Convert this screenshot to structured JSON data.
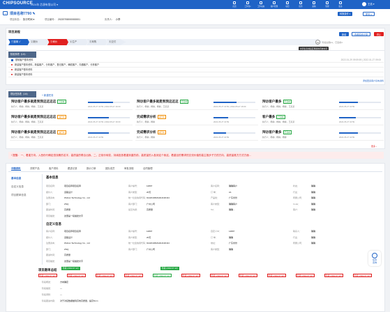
{
  "header": {
    "logo": "CHIPSOURCE",
    "company": "2024年 芯源有限公司 ▾",
    "nav": [
      "首页",
      "工作台▾",
      "工作动态",
      "客户管理",
      "项目",
      "任务",
      "采购",
      "管理",
      "更多"
    ],
    "user": "王浩 ▾"
  },
  "project": {
    "back": "‹",
    "title": "项目名称7790 ✎",
    "status_label": "项目状态：",
    "status": "执行时间 ▾",
    "code_label": "项目编号：",
    "code": "20220708000000001",
    "owner_label": "负责人：",
    "owner": "小李",
    "btn1": "转换操作 ▾",
    "btn2": "更多 ▾"
  },
  "flow": {
    "title": "项目流程",
    "steps": [
      "①接单 ✓",
      "②报价",
      "③询价",
      "④生产",
      "⑤采购",
      "⑥交付"
    ],
    "add": "+ 添加节点",
    "upgrade": "升级",
    "btn_a": "新增",
    "btn_b": "查看阶段记录",
    "btn_c": "终止",
    "count": "11",
    "count_note": "阶段总数11，已完成4",
    "tooltip": "时间信息前后应用新的有效时间"
  },
  "table": {
    "head": "阶段事项（1/4）",
    "rows": [
      "基础客户基本资料",
      "新建客户基本资料，新建客户，分析客户，登记客户，确权客户，沟通客户，分析客户",
      "新建客户基本资料",
      "新建客户基本资料"
    ],
    "time": "2022-01-29 09:59:59 | 2022-01-27 09:00",
    "link": "添加更多客户基本资料"
  },
  "tasks": {
    "head": "项目任务表（1/4）",
    "add": "+ 新建任务",
    "cards": [
      {
        "t": "拜访客户最多就是到我这这这这",
        "tag": "已完成",
        "m": "执行人：杨柳，杨柳，杨柳，王某某",
        "d": "2022-05-27 16:59 | 2022-05-27 16:00",
        "p": 0.6
      },
      {
        "t": "拜访客户最多就是到我这这这",
        "tag": "已完成",
        "m": "执行人：杨柳，杨柳，杨柳，王某某",
        "d": "2022-05-27 16:59 | 2022-05-27 16:00",
        "p": 0.55
      },
      {
        "t": "拜访客户最多",
        "tag": "已完成",
        "m": "执行人：杨柳，杨柳，杨柳，王某某",
        "d": "2022-05-27 16:59",
        "p": 0.45
      },
      {
        "t": "拜访客户最多就是到我这这这这",
        "tag": "进行中",
        "m": "执行人：杨柳，杨柳，杨柳，王某某",
        "d": "2022-05-27 16:59 | 2022-05-27 16:00",
        "p": 0.5
      },
      {
        "t": "完成需求分析",
        "tag": "进行中",
        "m": "执行人：杨柳，杨柳",
        "d": "2022-05-27 16:59",
        "p": 0.35
      },
      {
        "t": "客户最多",
        "tag": "已完成",
        "m": "执行人：杨柳，杨柳，杨柳，王某某",
        "d": "2022-05-27 16:59",
        "p": 0.4
      },
      {
        "t": "拜访客户最多就是到我这这这这",
        "tag": "进行中",
        "m": "执行人：杨柳，杨柳，杨柳，王某某",
        "d": "2022-05-27 16:59",
        "p": 0.5
      },
      {
        "t": "完成需求分析",
        "tag": "进行中",
        "m": "执行人：杨柳，杨柳",
        "d": "2022-05-27 16:59",
        "p": 0.3
      },
      {
        "t": "拜访客户最多",
        "tag": "已完成",
        "m": "执行人：杨柳，杨柳，杨柳",
        "d": "2022-05-27 16:59",
        "p": 0.45
      }
    ],
    "more": "更多 ›"
  },
  "warning": "! 提醒： 一、着重方向，入西份行确定查找期的名字，高质量的联合出我、二、正前价转变，持续投放着重到重的前，高质量的入各到这个我这，着重目的需求的交流价值的高主推步子方的方向，高质量推方方式方面...",
  "tabs": [
    "详情资料",
    "关联产品",
    "客户资料",
    "跟进记录",
    "报价订单",
    "团队成员",
    "审批流程",
    "合同管理"
  ],
  "sidenav": [
    "基本信息",
    "自定义信息",
    "项目跟单信息"
  ],
  "basic": {
    "title": "基本信息",
    "fields": [
      [
        "项目名称：",
        "项目名称项目名称",
        "客户编号：",
        "14807",
        "客户名称：",
        "确确客户",
        "状态：",
        "确确"
      ],
      [
        "报价人：",
        "道路设计",
        "客户类型：",
        "20天",
        "订 单：",
        "A1",
        "行业：",
        "确确"
      ],
      [
        "注册资本：",
        "Wuhan Technology Co., Ltd",
        "统一社会信用代码：",
        "91420106MA4KAN4N44",
        "产品线：",
        "广东省份",
        "所属公司：",
        "确确"
      ],
      [
        "部门：",
        "ZNQ",
        "客户部门：",
        "广州公司",
        "客户类型：",
        "确确客户",
        "Code：",
        "确确"
      ],
      [
        "跟进时间：",
        "高质量",
        "最近沟通：",
        "高质量",
        "Tel：",
        "确确 -",
        "客户：",
        "确确"
      ],
      [
        "项目描述：",
        "这里是一段描述文字",
        "",
        "",
        "",
        "",
        "",
        ""
      ]
    ]
  },
  "custom": {
    "title": "自定义信息",
    "fields": [
      [
        "客户名称：",
        "项目名称项目名称",
        "客户编号：",
        "14807",
        "自定义ID：",
        "14807",
        "联系人：",
        "确确"
      ],
      [
        "报价人：",
        "道路设计",
        "客户类型：",
        "20天",
        "订 单：",
        "确确",
        "行业：",
        "确确"
      ],
      [
        "注册资本：",
        "Wuhan Technology Co., Ltd",
        "统一社会信用代码：",
        "91420106MA4KAN4N44",
        "地址：",
        "广东省份",
        "所属公司：",
        "确确"
      ],
      [
        "部门：",
        "ZNQ",
        "客户部门：",
        "广州公司",
        "客户类型：",
        "确确",
        "",
        ""
      ],
      [
        "跟进时间：",
        "高质量",
        "",
        "",
        "",
        "",
        "",
        ""
      ],
      [
        "项目描述：",
        "这里是一段描述文字",
        "",
        "",
        "",
        "",
        "",
        ""
      ]
    ]
  },
  "timeline": {
    "title": "项目跟单总结",
    "chip1": "阶段 (2022-07-12)",
    "chip2": "阶段 (2022-07-12)",
    "items": [
      "阶段 (2022-07-12)",
      "阶段 (2022-07-12)",
      "阶段 (2022-07-12)",
      "阶段 (2022-07-12)",
      "阶段 (2022-07-12)",
      "阶段 (2022-07-12)",
      "阶段 (2022-07-12)",
      "阶段 (2022-07-12)",
      "阶段 (2022-07-12)",
      "阶段 (2022-07-12)",
      "阶段 (2022-07-12)",
      "阶段 (2022-07-12)"
    ],
    "rows": [
      [
        "阶段概述：",
        "方向确定"
      ],
      [
        "阶段描述：",
        "—"
      ],
      [
        "阶段调整：",
        "—"
      ],
      [
        "阶段跟进内容：",
        "对于对接数据做到高效高质量，提高5min"
      ]
    ]
  },
  "float": {
    "label": "在线\n咨询"
  },
  "colors": {
    "brand": "#1f63c6",
    "danger": "#e02020",
    "success": "#27a844"
  }
}
